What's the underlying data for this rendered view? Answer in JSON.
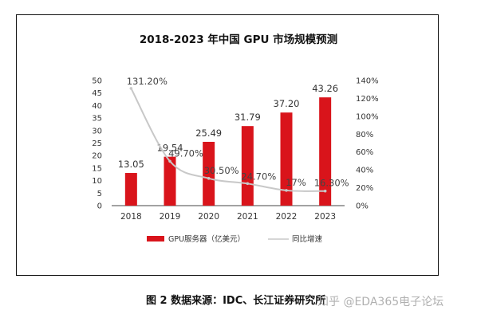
{
  "caption": "图 2 数据来源：IDC、长江证券研究所",
  "watermark": "知乎 @EDA365电子论坛",
  "colors": {
    "bar": "#d9141b",
    "line": "#c8c8c8",
    "axis": "#444444",
    "text": "#333333"
  },
  "chart_data": {
    "type": "bar",
    "title": "2018-2023 年中国 GPU 市场规模预测",
    "categories": [
      "2018",
      "2019",
      "2020",
      "2021",
      "2022",
      "2023"
    ],
    "series": [
      {
        "name": "GPU服务器（亿美元）",
        "type": "bar",
        "axis": "left",
        "values": [
          13.05,
          19.54,
          25.49,
          31.79,
          37.2,
          43.26
        ],
        "labels": [
          "13.05",
          "19.54",
          "25.49",
          "31.79",
          "37.20",
          "43.26"
        ]
      },
      {
        "name": "同比增速",
        "type": "line",
        "axis": "right",
        "values": [
          131.2,
          49.7,
          30.5,
          24.7,
          17,
          16.3
        ],
        "labels": [
          "131.20%",
          "49.70%",
          "30.50%",
          "24.70%",
          "17%",
          "16.30%"
        ]
      }
    ],
    "ylim": [
      0,
      50
    ],
    "yticks": [
      "0",
      "5",
      "10",
      "15",
      "20",
      "25",
      "30",
      "35",
      "40",
      "45",
      "50"
    ],
    "y2lim": [
      0,
      140
    ],
    "y2ticks": [
      "0%",
      "20%",
      "40%",
      "60%",
      "80%",
      "100%",
      "120%",
      "140%"
    ],
    "legend_position": "bottom",
    "grid": false
  }
}
